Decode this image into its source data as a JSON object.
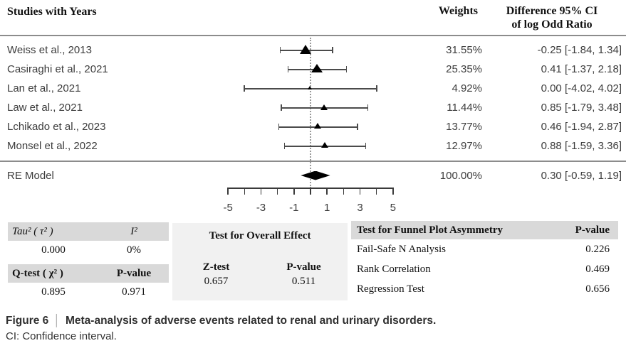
{
  "header": {
    "studies_col": "Studies with Years",
    "weights_col": "Weights",
    "difference_col_line1": "Difference 95% CI",
    "difference_col_line2": "of log Odd Ratio"
  },
  "chart_data": {
    "type": "forest",
    "title": "Meta-analysis of adverse events related to renal and urinary disorders",
    "xlabel": "Difference of log Odd Ratio",
    "axis": {
      "min": -5,
      "max": 5,
      "tick_step": 1,
      "label_ticks": [
        -5,
        -3,
        -1,
        1,
        3,
        5
      ]
    },
    "zero_reference": 0,
    "grid": false,
    "studies": [
      {
        "label": "Weiss et al., 2013",
        "weight_pct": 31.55,
        "estimate": -0.25,
        "ci_low": -1.84,
        "ci_high": 1.34,
        "weight_text": "31.55%",
        "ci_text": "-0.25 [-1.84, 1.34]"
      },
      {
        "label": "Casiraghi et al., 2021",
        "weight_pct": 25.35,
        "estimate": 0.41,
        "ci_low": -1.37,
        "ci_high": 2.18,
        "weight_text": "25.35%",
        "ci_text": "0.41 [-1.37, 2.18]"
      },
      {
        "label": "Lan et al., 2021",
        "weight_pct": 4.92,
        "estimate": 0.0,
        "ci_low": -4.02,
        "ci_high": 4.02,
        "weight_text": "4.92%",
        "ci_text": "0.00 [-4.02, 4.02]"
      },
      {
        "label": "Law et al., 2021",
        "weight_pct": 11.44,
        "estimate": 0.85,
        "ci_low": -1.79,
        "ci_high": 3.48,
        "weight_text": "11.44%",
        "ci_text": "0.85 [-1.79, 3.48]"
      },
      {
        "label": "Lchikado et al., 2023",
        "weight_pct": 13.77,
        "estimate": 0.46,
        "ci_low": -1.94,
        "ci_high": 2.87,
        "weight_text": "13.77%",
        "ci_text": "0.46 [-1.94, 2.87]"
      },
      {
        "label": "Monsel et al., 2022",
        "weight_pct": 12.97,
        "estimate": 0.88,
        "ci_low": -1.59,
        "ci_high": 3.36,
        "weight_text": "12.97%",
        "ci_text": "0.88 [-1.59, 3.36]"
      }
    ],
    "summary": {
      "label": "RE Model",
      "weight_pct": 100.0,
      "estimate": 0.3,
      "ci_low": -0.59,
      "ci_high": 1.19,
      "weight_text": "100.00%",
      "ci_text": "0.30 [-0.59, 1.19]"
    }
  },
  "stats": {
    "heterogeneity": {
      "tau_label": "Tau² ( τ² )",
      "i2_label": "I²",
      "tau_value": "0.000",
      "i2_value": "0%",
      "q_label": "Q-test ( χ² )",
      "q_p_label": "P-value",
      "q_value": "0.895",
      "q_p_value": "0.971"
    },
    "overall_effect": {
      "title": "Test for Overall Effect",
      "z_label": "Z-test",
      "p_label": "P-value",
      "z_value": "0.657",
      "p_value": "0.511"
    },
    "funnel": {
      "title": "Test for Funnel Plot Asymmetry",
      "p_label": "P-value",
      "rows": [
        {
          "label": "Fail-Safe N Analysis",
          "value": "0.226"
        },
        {
          "label": "Rank Correlation",
          "value": "0.469"
        },
        {
          "label": "Regression Test",
          "value": "0.656"
        }
      ]
    }
  },
  "caption": {
    "figure": "Figure 6",
    "separator": "│",
    "title": "Meta-analysis of adverse events related to renal and urinary disorders.",
    "note": "CI: Confidence interval."
  },
  "colors": {
    "rule": "#8c8c8c",
    "marker": "#000000",
    "ci_bar": "#4b4b4b",
    "zero_line": "#9a9a9a",
    "table_header_bg": "#d9d9d9",
    "panel_bg": "#f1f1f1"
  }
}
